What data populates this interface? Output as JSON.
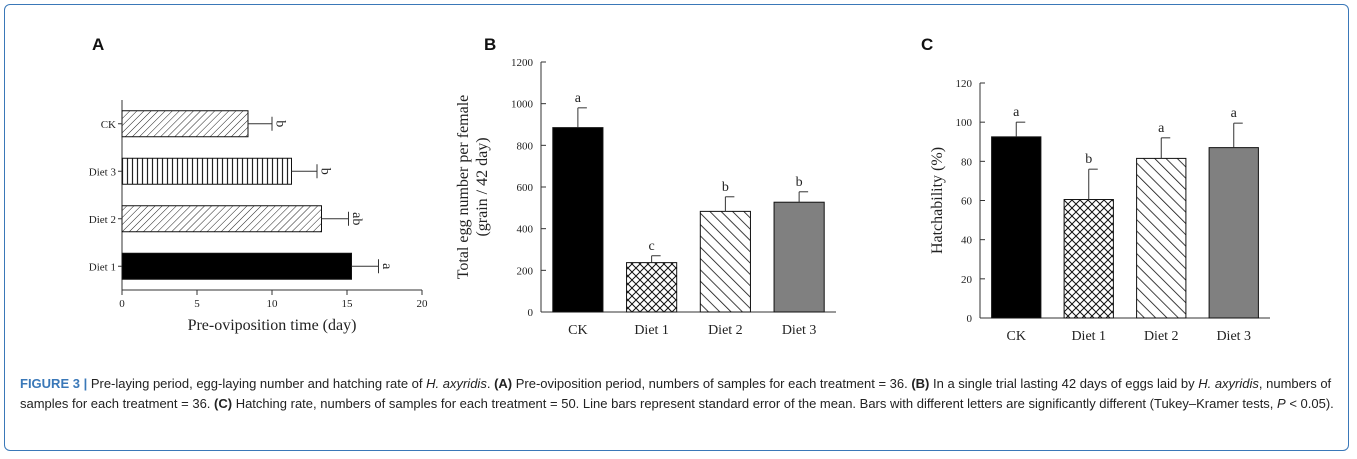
{
  "figure": {
    "caption": {
      "label": "FIGURE 3 |",
      "text_a": " Pre-laying period, egg-laying number and hatching rate of ",
      "species": "H. axyridis",
      "text_b": ". ",
      "tag_a": "(A)",
      "text_c": " Pre-oviposition period, numbers of samples for each treatment = 36. ",
      "tag_b": "(B)",
      "text_d": " In a single trial lasting 42 days of eggs laid by ",
      "species2": "H. axyridis",
      "text_e": ", numbers of samples for each treatment = 36. ",
      "tag_c": "(C)",
      "text_f": " Hatching rate, numbers of samples for each treatment = 50. Line bars represent standard error of the mean. Bars with different letters are significantly different (Tukey–Kramer tests, ",
      "p_symbol": "P",
      "text_g": " < 0.05)."
    }
  },
  "chart_data": [
    {
      "panel": "A",
      "type": "bar",
      "orientation": "horizontal",
      "categories": [
        "CK",
        "Diet 3",
        "Diet 2",
        "Diet 1"
      ],
      "values": [
        8.4,
        11.3,
        13.3,
        15.3
      ],
      "errors": [
        1.6,
        1.7,
        1.8,
        1.8
      ],
      "significance": [
        "b",
        "b",
        "ab",
        "a"
      ],
      "patterns": [
        "diag-fine",
        "vertical",
        "diag-fine",
        "solid-black"
      ],
      "xlabel": "Pre-oviposition time (day)",
      "ylabel": "",
      "xlim": [
        0,
        20
      ],
      "xticks": [
        0,
        5,
        10,
        15,
        20
      ],
      "grid": false
    },
    {
      "panel": "B",
      "type": "bar",
      "categories": [
        "CK",
        "Diet 1",
        "Diet 2",
        "Diet 3"
      ],
      "values": [
        885,
        237,
        483,
        527
      ],
      "errors": [
        95,
        33,
        70,
        50
      ],
      "significance": [
        "a",
        "c",
        "b",
        "b"
      ],
      "patterns": [
        "solid-black",
        "crosshatch",
        "diag-back",
        "solid-gray"
      ],
      "xlabel": "",
      "ylabel": "Total egg number per female",
      "ylabel2": "(grain / 42 day)",
      "ylim": [
        0,
        1200
      ],
      "yticks": [
        0,
        200,
        400,
        600,
        800,
        1000,
        1200
      ],
      "grid": false
    },
    {
      "panel": "C",
      "type": "bar",
      "categories": [
        "CK",
        "Diet 1",
        "Diet 2",
        "Diet 3"
      ],
      "values": [
        92.5,
        60.5,
        81.5,
        87.0
      ],
      "errors": [
        7.5,
        15.5,
        10.5,
        12.5
      ],
      "significance": [
        "a",
        "b",
        "a",
        "a"
      ],
      "patterns": [
        "solid-black",
        "crosshatch",
        "diag-back",
        "solid-gray"
      ],
      "xlabel": "",
      "ylabel": "Hatchability (%)",
      "ylim": [
        0,
        120
      ],
      "yticks": [
        0,
        20,
        40,
        60,
        80,
        100,
        120
      ],
      "grid": false
    }
  ]
}
